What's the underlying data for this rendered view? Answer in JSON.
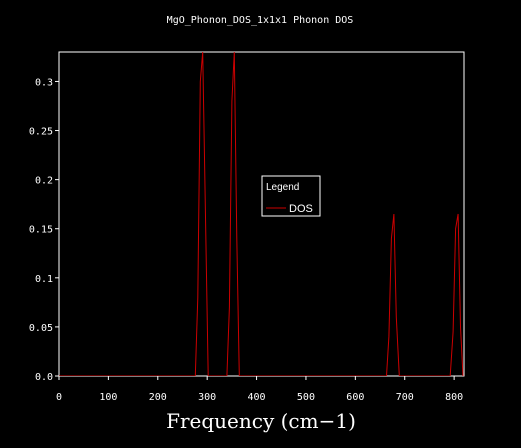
{
  "chart_data": {
    "type": "line",
    "title": "MgO_Phonon_DOS_1x1x1 Phonon DOS",
    "xlabel": "Frequency (cm−1)",
    "ylabel": "",
    "xlim": [
      0,
      820
    ],
    "ylim": [
      0,
      0.33
    ],
    "x_ticks": [
      0,
      100,
      200,
      300,
      400,
      500,
      600,
      700,
      800
    ],
    "y_ticks": [
      0.0,
      0.05,
      0.1,
      0.15,
      0.2,
      0.25,
      0.3
    ],
    "x_tick_labels": [
      "0",
      "100",
      "200",
      "300",
      "400",
      "500",
      "600",
      "700",
      "800"
    ],
    "y_tick_labels": [
      "0.0",
      "0.05",
      "0.1",
      "0.15",
      "0.2",
      "0.25",
      "0.3"
    ],
    "grid": false,
    "legend": {
      "title": "Legend",
      "placement": "center-right"
    },
    "series": [
      {
        "name": "DOS",
        "color": "#cc0000",
        "x": [
          0,
          276,
          281,
          286,
          291,
          297,
          302,
          340,
          345,
          350,
          355,
          360,
          365,
          663,
          668,
          673,
          678,
          683,
          689,
          792,
          798,
          803,
          808,
          813,
          818
        ],
        "y": [
          0,
          0,
          0.08,
          0.3,
          0.33,
          0.15,
          0,
          0,
          0.07,
          0.28,
          0.33,
          0.14,
          0,
          0,
          0.04,
          0.14,
          0.165,
          0.06,
          0,
          0,
          0.045,
          0.15,
          0.165,
          0.05,
          0
        ]
      }
    ]
  }
}
